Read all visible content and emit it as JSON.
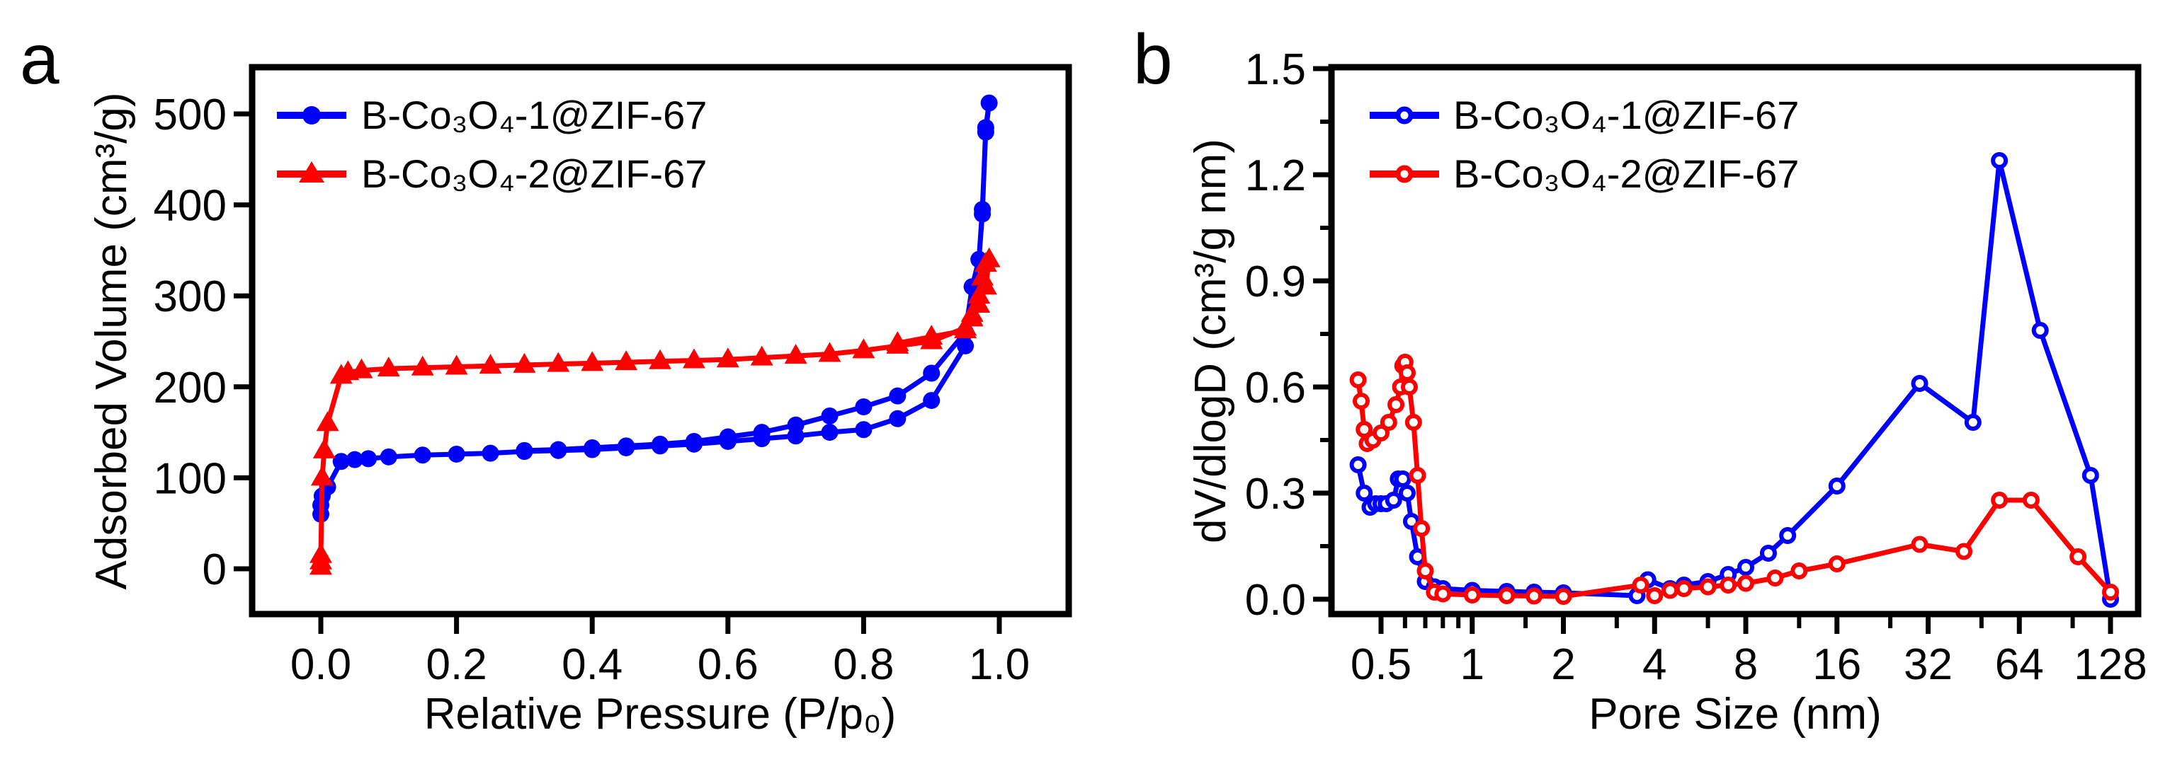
{
  "chart_data": [
    {
      "panel": "a",
      "type": "line",
      "xlabel": "Relative Pressure (P/p₀)",
      "ylabel": "Adsorbed Volume (cm³/g)",
      "xlim": [
        -0.1,
        1.1
      ],
      "ylim": [
        -75,
        560
      ],
      "xticks": [
        "0.0",
        "0.2",
        "0.4",
        "0.6",
        "0.8",
        "1.0"
      ],
      "yticks": [
        "0",
        "100",
        "200",
        "300",
        "400",
        "500"
      ],
      "legend_position": "top-left",
      "series": [
        {
          "name": "B-Co₃O₄-1@ZIF-67",
          "color": "#0000ff",
          "marker": "filled-circle",
          "x": [
            0.0,
            0.0,
            0.002,
            0.01,
            0.03,
            0.05,
            0.07,
            0.1,
            0.15,
            0.2,
            0.25,
            0.3,
            0.35,
            0.4,
            0.45,
            0.5,
            0.55,
            0.6,
            0.65,
            0.7,
            0.75,
            0.8,
            0.85,
            0.9,
            0.95,
            0.96,
            0.97,
            0.975,
            0.98,
            0.985,
            0.98,
            0.975,
            0.97,
            0.96,
            0.95,
            0.9,
            0.85,
            0.8,
            0.75,
            0.7,
            0.65,
            0.6,
            0.55,
            0.5,
            0.45,
            0.4,
            0.35,
            0.3
          ],
          "y": [
            60,
            70,
            80,
            90,
            118,
            120,
            121,
            123,
            125,
            126,
            127,
            129,
            130,
            131,
            133,
            135,
            137,
            140,
            143,
            146,
            150,
            153,
            165,
            185,
            245,
            310,
            340,
            395,
            480,
            512,
            485,
            390,
            340,
            310,
            260,
            215,
            190,
            178,
            168,
            158,
            150,
            145,
            140,
            137,
            135,
            133,
            131,
            130
          ]
        },
        {
          "name": "B-Co₃O₄-2@ZIF-67",
          "color": "#ff0000",
          "marker": "filled-triangle",
          "x": [
            0.0,
            0.0,
            0.0,
            0.002,
            0.005,
            0.01,
            0.03,
            0.04,
            0.06,
            0.1,
            0.15,
            0.2,
            0.25,
            0.3,
            0.35,
            0.4,
            0.45,
            0.5,
            0.55,
            0.6,
            0.65,
            0.7,
            0.75,
            0.8,
            0.85,
            0.9,
            0.95,
            0.96,
            0.97,
            0.975,
            0.98,
            0.985,
            0.98,
            0.97,
            0.96,
            0.95,
            0.9,
            0.85
          ],
          "y": [
            2,
            8,
            15,
            100,
            130,
            160,
            212,
            216,
            218,
            220,
            221,
            222,
            223,
            224,
            225,
            226,
            227,
            228,
            229,
            230,
            232,
            234,
            236,
            240,
            245,
            250,
            265,
            280,
            300,
            320,
            335,
            340,
            310,
            290,
            275,
            262,
            255,
            248
          ]
        }
      ]
    },
    {
      "panel": "b",
      "type": "line",
      "xlabel": "Pore Size (nm)",
      "ylabel": "dV/dlogD (cm³/g nm)",
      "xscale": "log2",
      "xlim": [
        0.4,
        150
      ],
      "ylim": [
        -0.02,
        1.5
      ],
      "xticks": [
        "0.5",
        "1",
        "2",
        "4",
        "8",
        "16",
        "32",
        "64",
        "128"
      ],
      "yticks": [
        "0.0",
        "0.3",
        "0.6",
        "0.9",
        "1.2",
        "1.5"
      ],
      "legend_position": "top-left",
      "series": [
        {
          "name": "B-Co₃O₄-1@ZIF-67",
          "color": "#0000ff",
          "marker": "open-circle",
          "x": [
            0.42,
            0.44,
            0.46,
            0.48,
            0.5,
            0.52,
            0.55,
            0.57,
            0.59,
            0.61,
            0.63,
            0.66,
            0.7,
            0.75,
            0.8,
            1.0,
            1.3,
            1.6,
            2.0,
            3.5,
            3.8,
            4.5,
            5.0,
            6.0,
            7.0,
            8.0,
            9.5,
            11,
            16,
            30,
            45,
            55,
            75,
            110,
            128
          ],
          "y": [
            0.38,
            0.3,
            0.26,
            0.27,
            0.27,
            0.27,
            0.28,
            0.34,
            0.34,
            0.3,
            0.22,
            0.12,
            0.05,
            0.035,
            0.03,
            0.025,
            0.022,
            0.02,
            0.018,
            0.01,
            0.055,
            0.03,
            0.04,
            0.05,
            0.07,
            0.09,
            0.13,
            0.18,
            0.32,
            0.61,
            0.5,
            1.24,
            0.76,
            0.35,
            0.0
          ]
        },
        {
          "name": "B-Co₃O₄-2@ZIF-67",
          "color": "#ff0000",
          "marker": "open-circle",
          "x": [
            0.42,
            0.43,
            0.44,
            0.45,
            0.47,
            0.5,
            0.53,
            0.56,
            0.58,
            0.59,
            0.6,
            0.61,
            0.62,
            0.64,
            0.66,
            0.68,
            0.7,
            0.75,
            0.8,
            1.0,
            1.3,
            1.6,
            2.0,
            3.6,
            4.0,
            4.5,
            5.0,
            6.0,
            7.0,
            8.0,
            10,
            12,
            16,
            30,
            42,
            55,
            70,
            100,
            128
          ],
          "y": [
            0.62,
            0.56,
            0.48,
            0.44,
            0.45,
            0.47,
            0.5,
            0.55,
            0.6,
            0.66,
            0.67,
            0.64,
            0.6,
            0.5,
            0.35,
            0.2,
            0.08,
            0.02,
            0.015,
            0.012,
            0.01,
            0.009,
            0.008,
            0.04,
            0.01,
            0.025,
            0.03,
            0.035,
            0.04,
            0.045,
            0.06,
            0.08,
            0.1,
            0.155,
            0.135,
            0.28,
            0.28,
            0.12,
            0.02
          ]
        }
      ]
    }
  ],
  "panel_labels": [
    "a",
    "b"
  ]
}
